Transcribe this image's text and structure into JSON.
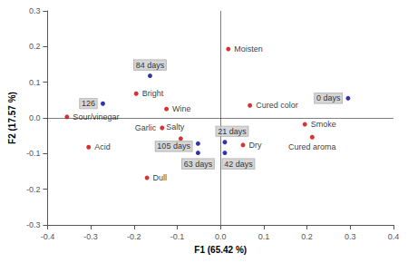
{
  "chart_data": {
    "type": "scatter",
    "xlabel": "F1 (65.42 %)",
    "ylabel": "F2 (17.57 %)",
    "xlim": [
      -0.4,
      0.4
    ],
    "ylim": [
      -0.3,
      0.3
    ],
    "xticks": [
      -0.4,
      -0.3,
      -0.2,
      -0.1,
      {
        "value": 0,
        "label": "0.0"
      },
      0.1,
      0.2,
      0.3,
      0.4
    ],
    "yticks": [
      -0.3,
      -0.2,
      -0.1,
      {
        "value": 0,
        "label": "0.0"
      },
      0.1,
      0.2,
      0.3
    ],
    "grid": false,
    "series": [
      {
        "type": "scatter",
        "color": "#cc0000",
        "x": [
          -0.355,
          -0.305,
          -0.195,
          -0.125,
          -0.135,
          -0.092,
          -0.17,
          0.018,
          0.068,
          0.052,
          0.195,
          0.212
        ],
        "y": [
          0.003,
          -0.082,
          0.068,
          0.025,
          -0.028,
          -0.058,
          -0.168,
          0.193,
          0.035,
          -0.076,
          -0.018,
          -0.054
        ],
        "labels": [
          "Sour/vinegar",
          "Acid",
          "Bright",
          "Wine",
          "Garlic",
          "Salty",
          "Dull",
          "Moisten",
          "Cured color",
          "Dry",
          "Smoke",
          "Cured aroma"
        ]
      },
      {
        "type": "scatter",
        "color": "#000099",
        "x": [
          -0.272,
          -0.163,
          -0.052,
          -0.052,
          0.01,
          0.01,
          0.295
        ],
        "y": [
          0.04,
          0.118,
          -0.072,
          -0.098,
          -0.068,
          -0.098,
          0.055
        ],
        "labels": [
          "126",
          "84 days",
          "105 days",
          "63 days",
          "21 days",
          "42 days",
          "0 days"
        ]
      }
    ]
  }
}
